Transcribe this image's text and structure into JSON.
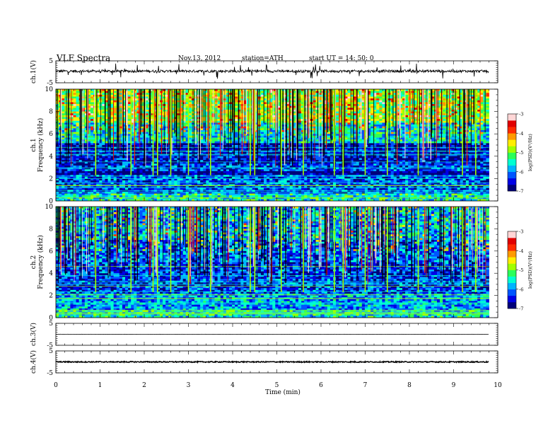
{
  "header": {
    "title": "VLF  Spectra",
    "date": "Nov.13, 2012",
    "station": "station=ATH",
    "start": "start  UT =   14: 50: 0"
  },
  "chart_data": [
    {
      "type": "line",
      "panel": "ch1-waveform",
      "ylabel": "ch.1(V)",
      "ylim": [
        -5,
        5
      ],
      "yticks": [
        "5",
        "-5"
      ],
      "xlim": [
        0,
        10
      ],
      "data_end_min": 9.8,
      "level_v": 0.3,
      "noise_amplitude_v": 0.6,
      "spike_amplitude_v": 3.5
    },
    {
      "type": "heatmap",
      "panel": "ch1-spectrogram",
      "ylabel_channel": "ch.1",
      "ylabel": "Frequency  (kHz)",
      "xlim": [
        0,
        10
      ],
      "ylim": [
        0,
        10
      ],
      "yticks": [
        "0",
        "2",
        "4",
        "6",
        "8",
        "10"
      ],
      "data_end_min": 9.8,
      "colorbar": {
        "label": "log(PSD)(V²/Hz)",
        "range": [
          -7,
          -3
        ],
        "ticks": [
          "-3",
          "-4",
          "-5",
          "-6",
          "-7"
        ]
      },
      "bands_khz": [
        {
          "from": 0,
          "to": 0.6,
          "log_psd": -5.5
        },
        {
          "from": 0.6,
          "to": 2.3,
          "log_psd": -6.2
        },
        {
          "from": 2.3,
          "to": 2.6,
          "log_psd": -6.9
        },
        {
          "from": 2.6,
          "to": 3.4,
          "log_psd": -6.3
        },
        {
          "from": 3.4,
          "to": 5.2,
          "log_psd": -6.6
        },
        {
          "from": 5.2,
          "to": 7.0,
          "log_psd": -5.6
        },
        {
          "from": 7.0,
          "to": 10,
          "log_psd": -4.9
        }
      ],
      "strong_events_min": [
        0.9,
        1.7,
        2.2,
        2.3,
        2.6,
        3.0,
        3.5,
        4.4,
        4.5,
        5.1,
        5.6,
        6.3,
        6.5,
        7.0,
        7.5,
        8.2,
        9.2,
        9.5
      ]
    },
    {
      "type": "heatmap",
      "panel": "ch2-spectrogram",
      "ylabel_channel": "ch.2",
      "ylabel": "Frequency  (kHz)",
      "xlim": [
        0,
        10
      ],
      "ylim": [
        0,
        10
      ],
      "yticks": [
        "0",
        "2",
        "4",
        "6",
        "8",
        "10"
      ],
      "data_end_min": 9.8,
      "colorbar": {
        "label": "log(PSD)(V²/Hz)",
        "range": [
          -7,
          -3
        ],
        "ticks": [
          "-3",
          "-4",
          "-5",
          "-6",
          "-7"
        ]
      },
      "bands_khz": [
        {
          "from": 0,
          "to": 0.6,
          "log_psd": -5.5
        },
        {
          "from": 0.6,
          "to": 2.2,
          "log_psd": -5.9
        },
        {
          "from": 2.2,
          "to": 5.0,
          "log_psd": -6.3
        },
        {
          "from": 5.0,
          "to": 7.0,
          "log_psd": -6.1
        },
        {
          "from": 7.0,
          "to": 10,
          "log_psd": -5.8
        }
      ],
      "strong_events_min": [
        0.9,
        1.7,
        2.2,
        2.3,
        2.6,
        3.0,
        3.5,
        4.4,
        4.5,
        5.1,
        5.6,
        6.3,
        6.5,
        7.0,
        7.5,
        8.2,
        9.2,
        9.5
      ]
    },
    {
      "type": "line",
      "panel": "ch3-waveform",
      "ylabel": "ch.3(V)",
      "ylim": [
        -5,
        5
      ],
      "yticks": [
        "5",
        "-5"
      ],
      "xlim": [
        0,
        10
      ],
      "data_end_min": 9.8,
      "level_v": 0.0,
      "noise_amplitude_v": 0.05
    },
    {
      "type": "line",
      "panel": "ch4-waveform",
      "ylabel": "ch.4(V)",
      "ylim": [
        -5,
        5
      ],
      "yticks": [
        "5",
        "-5"
      ],
      "xlim": [
        0,
        10
      ],
      "data_end_min": 9.8,
      "level_v": 0.0,
      "noise_amplitude_v": 0.25
    }
  ],
  "xaxis": {
    "label": "Time  (min)",
    "ticks": [
      "0",
      "1",
      "2",
      "3",
      "4",
      "5",
      "6",
      "7",
      "8",
      "9",
      "10"
    ]
  },
  "colors": {
    "colormap": [
      "#00007a",
      "#0000e6",
      "#0055ff",
      "#00b4ff",
      "#00ffd2",
      "#2aff5a",
      "#a0ff00",
      "#ffee00",
      "#ff9a00",
      "#ff2a00",
      "#e10000",
      "#ffd6d6"
    ]
  }
}
